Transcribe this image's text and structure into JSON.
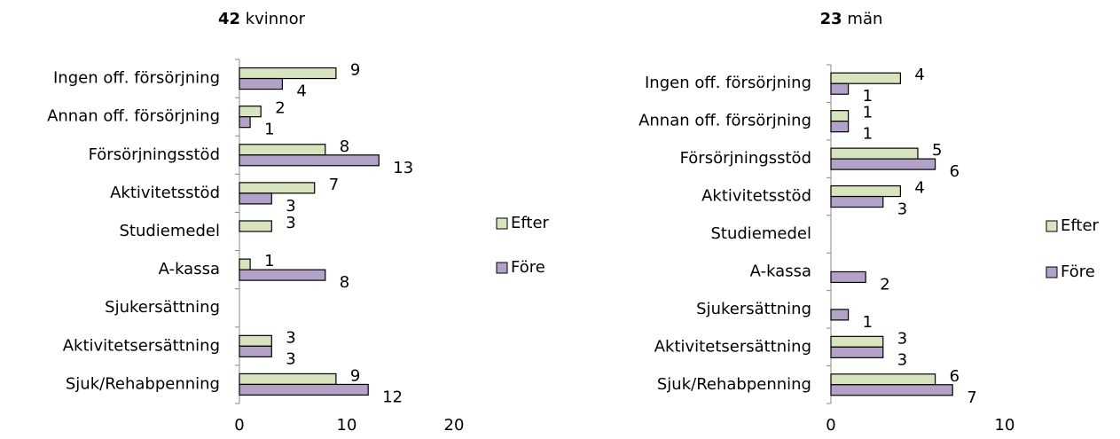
{
  "chart_data": [
    {
      "type": "hbar",
      "title_count": "42",
      "title": "kvinnor",
      "categories": [
        "Ingen off. försörjning",
        "Annan off. försörjning",
        "Försörjningsstöd",
        "Aktivitetsstöd",
        "Studiemedel",
        "A-kassa",
        "Sjukersättning",
        "Aktivitetsersättning",
        "Sjuk/Rehabpenning"
      ],
      "series": [
        {
          "name": "Efter",
          "color": "#d7e4bd",
          "values": [
            9,
            2,
            8,
            7,
            3,
            1,
            null,
            3,
            9
          ]
        },
        {
          "name": "Före",
          "color": "#b3a2c7",
          "values": [
            4,
            1,
            13,
            3,
            null,
            8,
            null,
            3,
            12
          ]
        }
      ],
      "xlim": [
        0,
        20
      ],
      "xticks": [
        0,
        10,
        20
      ],
      "legend": "right"
    },
    {
      "type": "hbar",
      "title_count": "23",
      "title": "män",
      "categories": [
        "Ingen off. försörjning",
        "Annan off. försörjning",
        "Försörjningsstöd",
        "Aktivitetsstöd",
        "Studiemedel",
        "A-kassa",
        "Sjukersättning",
        "Aktivitetsersättning",
        "Sjuk/Rehabpenning"
      ],
      "series": [
        {
          "name": "Efter",
          "color": "#d7e4bd",
          "values": [
            4,
            1,
            5,
            4,
            null,
            null,
            null,
            3,
            6
          ]
        },
        {
          "name": "Före",
          "color": "#b3a2c7",
          "values": [
            1,
            1,
            6,
            3,
            null,
            2,
            1,
            3,
            7
          ]
        }
      ],
      "xlim": [
        0,
        10
      ],
      "xticks": [
        0,
        10
      ],
      "legend": "right"
    }
  ]
}
